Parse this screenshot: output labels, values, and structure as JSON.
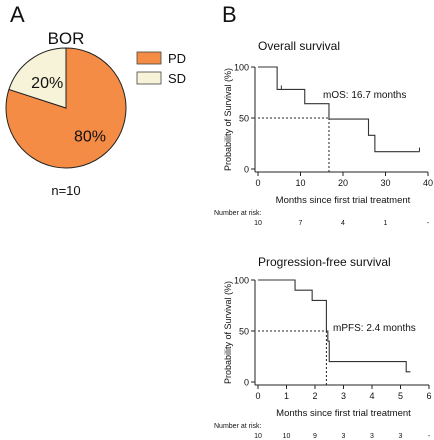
{
  "panel_a": {
    "letter": "A",
    "footnote": "n=10"
  },
  "panel_b": {
    "letter": "B"
  },
  "colors": {
    "pd": "#f58c45",
    "sd": "#f6f3d8",
    "line": "#333333"
  },
  "chart_data": [
    {
      "type": "pie",
      "title": "BOR",
      "categories": [
        "PD",
        "SD"
      ],
      "values": [
        80,
        20
      ],
      "labels": [
        "80%",
        "20%"
      ],
      "legend": "right"
    },
    {
      "type": "line",
      "title": "Overall survival",
      "xlabel": "Months since first trial treatment",
      "ylabel": "Probability of Survival (%)",
      "xlim": [
        0,
        40
      ],
      "ylim": [
        0,
        100
      ],
      "xticks": [
        0,
        10,
        20,
        30,
        40
      ],
      "yticks": [
        0,
        50,
        100
      ],
      "annotation": "mOS: 16.7 months",
      "median_x": 16.7,
      "series": [
        {
          "x": [
            0,
            4.5,
            4.5,
            11.0,
            11.0,
            16.7,
            16.7,
            26.0,
            26.0,
            27.5,
            27.5,
            38.0
          ],
          "y": [
            100,
            100,
            78,
            78,
            64,
            64,
            49,
            49,
            33,
            33,
            17,
            17
          ]
        }
      ],
      "censored": [
        {
          "x": 5.5,
          "y": 78
        },
        {
          "x": 38.0,
          "y": 17
        }
      ],
      "risk_table": {
        "title": "Number at risk:",
        "values": [
          "10",
          "7",
          "4",
          "1",
          "-"
        ]
      }
    },
    {
      "type": "line",
      "title": "Progression-free survival",
      "xlabel": "Months since first trial treatment",
      "ylabel": "Probability of Survival (%)",
      "xlim": [
        0,
        6
      ],
      "ylim": [
        0,
        100
      ],
      "xticks": [
        0,
        1,
        2,
        3,
        4,
        5,
        6
      ],
      "yticks": [
        0,
        50,
        100
      ],
      "annotation": "mPFS: 2.4 months",
      "median_x": 2.4,
      "series": [
        {
          "x": [
            0,
            1.3,
            1.3,
            1.9,
            1.9,
            2.4,
            2.4,
            2.45,
            2.45,
            2.5,
            2.5,
            5.2,
            5.2,
            5.35
          ],
          "y": [
            100,
            100,
            90,
            90,
            80,
            80,
            50,
            50,
            40,
            40,
            20,
            20,
            10,
            10
          ]
        }
      ],
      "censored": [],
      "risk_table": {
        "title": "Number at risk:",
        "values": [
          "10",
          "10",
          "9",
          "3",
          "3",
          "3",
          "-"
        ]
      }
    }
  ]
}
